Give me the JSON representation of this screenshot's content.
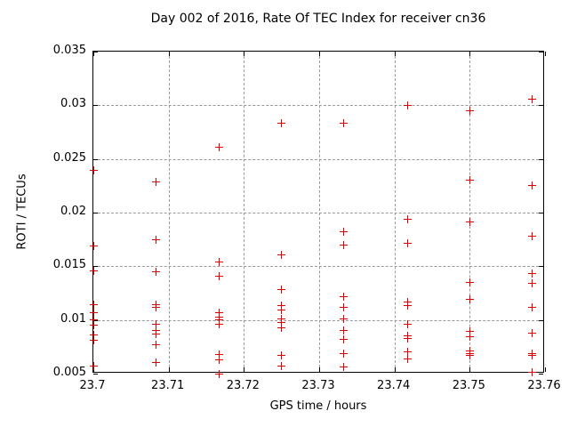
{
  "chart_data": {
    "type": "scatter",
    "title": "Day 002 of 2016, Rate Of TEC Index for receiver cn36",
    "xlabel": "GPS time / hours",
    "ylabel": "ROTI / TECUs",
    "xlim": [
      23.7,
      23.76
    ],
    "ylim": [
      0.005,
      0.035
    ],
    "xticks": [
      23.7,
      23.71,
      23.72,
      23.73,
      23.74,
      23.75,
      23.76
    ],
    "xtick_labels": [
      "23.7",
      "23.71",
      "23.72",
      "23.73",
      "23.74",
      "23.75",
      "23.76"
    ],
    "yticks": [
      0.005,
      0.01,
      0.015,
      0.02,
      0.025,
      0.03,
      0.035
    ],
    "ytick_labels": [
      "0.005",
      "0.01",
      "0.015",
      "0.02",
      "0.025",
      "0.03",
      "0.035"
    ],
    "grid": true,
    "legend": "none",
    "marker": "plus",
    "marker_color": "#dd0000",
    "grid_color": "#999999",
    "axis_color": "#000000",
    "background_color": "#ffffff",
    "series": [
      {
        "name": "ROTI",
        "points": [
          [
            23.7,
            0.0239
          ],
          [
            23.7,
            0.0169
          ],
          [
            23.7,
            0.0146
          ],
          [
            23.7,
            0.0114
          ],
          [
            23.7,
            0.0107
          ],
          [
            23.7,
            0.01
          ],
          [
            23.7,
            0.0095
          ],
          [
            23.7,
            0.0086
          ],
          [
            23.7,
            0.0081
          ],
          [
            23.7,
            0.0057
          ],
          [
            23.7083,
            0.0229
          ],
          [
            23.7083,
            0.0175
          ],
          [
            23.7083,
            0.0145
          ],
          [
            23.7083,
            0.0114
          ],
          [
            23.7083,
            0.0112
          ],
          [
            23.7083,
            0.0096
          ],
          [
            23.7083,
            0.009
          ],
          [
            23.7083,
            0.0087
          ],
          [
            23.7083,
            0.0077
          ],
          [
            23.7083,
            0.006
          ],
          [
            23.7167,
            0.0261
          ],
          [
            23.7167,
            0.0154
          ],
          [
            23.7167,
            0.0141
          ],
          [
            23.7167,
            0.0107
          ],
          [
            23.7167,
            0.0103
          ],
          [
            23.7167,
            0.01
          ],
          [
            23.7167,
            0.0096
          ],
          [
            23.7167,
            0.0068
          ],
          [
            23.7167,
            0.0063
          ],
          [
            23.7167,
            0.005
          ],
          [
            23.725,
            0.0283
          ],
          [
            23.725,
            0.0161
          ],
          [
            23.725,
            0.0128
          ],
          [
            23.725,
            0.0113
          ],
          [
            23.725,
            0.0109
          ],
          [
            23.725,
            0.0101
          ],
          [
            23.725,
            0.0098
          ],
          [
            23.725,
            0.0093
          ],
          [
            23.725,
            0.0067
          ],
          [
            23.725,
            0.0057
          ],
          [
            23.7333,
            0.0283
          ],
          [
            23.7333,
            0.0182
          ],
          [
            23.7333,
            0.017
          ],
          [
            23.7333,
            0.0122
          ],
          [
            23.7333,
            0.0112
          ],
          [
            23.7333,
            0.0101
          ],
          [
            23.7333,
            0.009
          ],
          [
            23.7333,
            0.0082
          ],
          [
            23.7333,
            0.0069
          ],
          [
            23.7333,
            0.0056
          ],
          [
            23.7417,
            0.03
          ],
          [
            23.7417,
            0.0194
          ],
          [
            23.7417,
            0.0171
          ],
          [
            23.7417,
            0.0117
          ],
          [
            23.7417,
            0.0113
          ],
          [
            23.7417,
            0.0096
          ],
          [
            23.7417,
            0.0085
          ],
          [
            23.7417,
            0.0083
          ],
          [
            23.7417,
            0.007
          ],
          [
            23.7417,
            0.0064
          ],
          [
            23.75,
            0.0295
          ],
          [
            23.75,
            0.023
          ],
          [
            23.75,
            0.0191
          ],
          [
            23.75,
            0.0135
          ],
          [
            23.75,
            0.0119
          ],
          [
            23.75,
            0.0089
          ],
          [
            23.75,
            0.0084
          ],
          [
            23.75,
            0.0071
          ],
          [
            23.75,
            0.0069
          ],
          [
            23.75,
            0.0067
          ],
          [
            23.7583,
            0.0306
          ],
          [
            23.7583,
            0.0225
          ],
          [
            23.7583,
            0.0178
          ],
          [
            23.7583,
            0.0143
          ],
          [
            23.7583,
            0.0134
          ],
          [
            23.7583,
            0.0112
          ],
          [
            23.7583,
            0.0088
          ],
          [
            23.7583,
            0.0069
          ],
          [
            23.7583,
            0.0067
          ],
          [
            23.7583,
            0.0051
          ]
        ]
      }
    ]
  }
}
